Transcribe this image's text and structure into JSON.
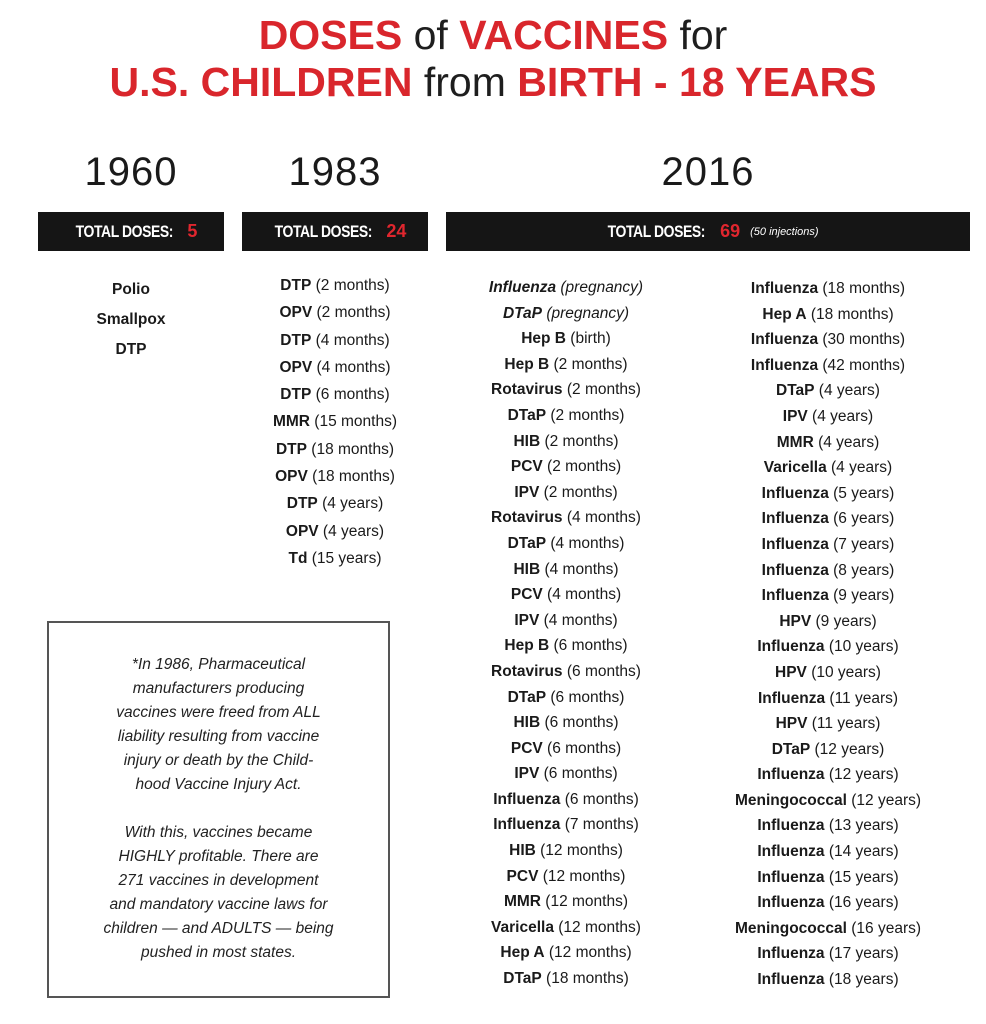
{
  "title": {
    "line1": [
      "DOSES",
      " of ",
      "VACCINES",
      " for"
    ],
    "line2": [
      "U.S. CHILDREN",
      " from ",
      "BIRTH - 18 YEARS"
    ]
  },
  "colors": {
    "accent": "#d9262c",
    "bar": "#151515"
  },
  "columns": {
    "c1960": {
      "year": "1960",
      "total_label": "TOTAL DOSES:",
      "total": "5",
      "items": [
        {
          "name": "Polio",
          "detail": ""
        },
        {
          "name": "Smallpox",
          "detail": ""
        },
        {
          "name": "DTP",
          "detail": ""
        }
      ]
    },
    "c1983": {
      "year": "1983",
      "total_label": "TOTAL DOSES:",
      "total": "24",
      "items": [
        {
          "name": "DTP",
          "detail": " (2 months)"
        },
        {
          "name": "OPV",
          "detail": " (2 months)"
        },
        {
          "name": "DTP",
          "detail": " (4 months)"
        },
        {
          "name": "OPV",
          "detail": " (4 months)"
        },
        {
          "name": "DTP",
          "detail": " (6 months)"
        },
        {
          "name": "MMR",
          "detail": " (15 months)"
        },
        {
          "name": "DTP",
          "detail": " (18 months)"
        },
        {
          "name": "OPV",
          "detail": " (18 months)"
        },
        {
          "name": "DTP",
          "detail": " (4 years)"
        },
        {
          "name": "OPV",
          "detail": " (4 years)"
        },
        {
          "name": "Td",
          "detail": " (15 years)"
        }
      ]
    },
    "c2016": {
      "year": "2016",
      "total_label": "TOTAL DOSES:",
      "total": "69",
      "note": "(50 injections)",
      "left": [
        {
          "name": "Influenza",
          "detail": " (pregnancy)",
          "italic": true
        },
        {
          "name": "DTaP",
          "detail": " (pregnancy)",
          "italic": true
        },
        {
          "name": "Hep B",
          "detail": " (birth)"
        },
        {
          "name": "Hep B",
          "detail": " (2 months)"
        },
        {
          "name": "Rotavirus",
          "detail": " (2 months)"
        },
        {
          "name": "DTaP",
          "detail": " (2 months)"
        },
        {
          "name": "HIB",
          "detail": " (2 months)"
        },
        {
          "name": "PCV",
          "detail": " (2 months)"
        },
        {
          "name": "IPV",
          "detail": " (2 months)"
        },
        {
          "name": "Rotavirus",
          "detail": " (4 months)"
        },
        {
          "name": "DTaP",
          "detail": " (4 months)"
        },
        {
          "name": "HIB",
          "detail": " (4 months)"
        },
        {
          "name": "PCV",
          "detail": " (4 months)"
        },
        {
          "name": "IPV",
          "detail": " (4 months)"
        },
        {
          "name": "Hep B",
          "detail": " (6 months)"
        },
        {
          "name": "Rotavirus",
          "detail": " (6 months)"
        },
        {
          "name": "DTaP",
          "detail": " (6 months)"
        },
        {
          "name": "HIB",
          "detail": " (6 months)"
        },
        {
          "name": "PCV",
          "detail": " (6 months)"
        },
        {
          "name": "IPV",
          "detail": " (6 months)"
        },
        {
          "name": "Influenza",
          "detail": " (6 months)"
        },
        {
          "name": "Influenza",
          "detail": " (7 months)"
        },
        {
          "name": "HIB",
          "detail": " (12 months)"
        },
        {
          "name": "PCV",
          "detail": " (12 months)"
        },
        {
          "name": "MMR",
          "detail": " (12 months)"
        },
        {
          "name": "Varicella",
          "detail": " (12 months)"
        },
        {
          "name": "Hep A",
          "detail": " (12 months)"
        },
        {
          "name": "DTaP",
          "detail": " (18 months)"
        }
      ],
      "right": [
        {
          "name": "Influenza",
          "detail": " (18 months)"
        },
        {
          "name": "Hep A",
          "detail": " (18 months)"
        },
        {
          "name": "Influenza",
          "detail": " (30 months)"
        },
        {
          "name": "Influenza",
          "detail": " (42 months)"
        },
        {
          "name": "DTaP",
          "detail": " (4 years)"
        },
        {
          "name": "IPV",
          "detail": " (4 years)"
        },
        {
          "name": "MMR",
          "detail": " (4 years)"
        },
        {
          "name": "Varicella",
          "detail": " (4 years)"
        },
        {
          "name": "Influenza",
          "detail": " (5 years)"
        },
        {
          "name": "Influenza",
          "detail": " (6 years)"
        },
        {
          "name": "Influenza",
          "detail": " (7 years)"
        },
        {
          "name": "Influenza",
          "detail": " (8 years)"
        },
        {
          "name": "Influenza",
          "detail": " (9 years)"
        },
        {
          "name": "HPV",
          "detail": " (9 years)"
        },
        {
          "name": "Influenza",
          "detail": " (10 years)"
        },
        {
          "name": "HPV",
          "detail": " (10 years)"
        },
        {
          "name": "Influenza",
          "detail": " (11 years)"
        },
        {
          "name": "HPV",
          "detail": " (11 years)"
        },
        {
          "name": "DTaP",
          "detail": " (12 years)"
        },
        {
          "name": "Influenza",
          "detail": " (12 years)"
        },
        {
          "name": "Meningococcal",
          "detail": " (12 years)"
        },
        {
          "name": "Influenza",
          "detail": " (13 years)"
        },
        {
          "name": "Influenza",
          "detail": " (14 years)"
        },
        {
          "name": "Influenza",
          "detail": " (15 years)"
        },
        {
          "name": "Influenza",
          "detail": " (16 years)"
        },
        {
          "name": "Meningococcal",
          "detail": " (16 years)"
        },
        {
          "name": "Influenza",
          "detail": " (17 years)"
        },
        {
          "name": "Influenza",
          "detail": " (18 years)"
        }
      ]
    }
  },
  "note_box": {
    "p1": [
      "*In 1986, Pharmaceutical",
      "manufacturers producing",
      "vaccines were freed from ALL",
      "liability resulting from vaccine",
      "injury or death by the Child-",
      "hood Vaccine Injury Act."
    ],
    "p2": [
      "With this, vaccines became",
      "HIGHLY profitable. There are",
      "271 vaccines in development",
      "and mandatory vaccine laws for",
      "children — and ADULTS — being",
      "pushed in most states."
    ]
  }
}
